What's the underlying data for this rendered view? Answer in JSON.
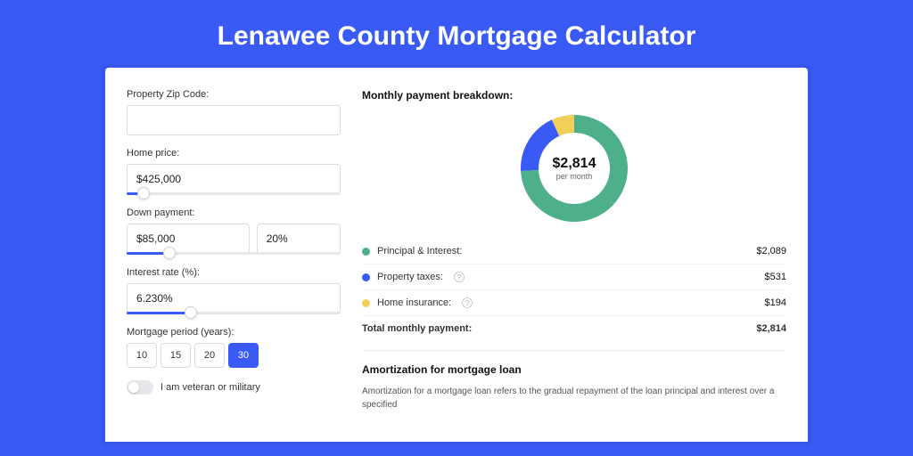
{
  "page": {
    "title": "Lenawee County Mortgage Calculator",
    "background_color": "#3a5af6",
    "card_background": "#ffffff"
  },
  "form": {
    "zip": {
      "label": "Property Zip Code:",
      "value": ""
    },
    "home_price": {
      "label": "Home price:",
      "value": "$425,000",
      "slider_pct": 8
    },
    "down_payment": {
      "label": "Down payment:",
      "amount": "$85,000",
      "percent": "20%",
      "slider_pct": 20
    },
    "interest_rate": {
      "label": "Interest rate (%):",
      "value": "6.230%",
      "slider_pct": 30
    },
    "period": {
      "label": "Mortgage period (years):",
      "options": [
        "10",
        "15",
        "20",
        "30"
      ],
      "selected": "30"
    },
    "veteran": {
      "label": "I am veteran or military",
      "checked": false
    }
  },
  "breakdown": {
    "title": "Monthly payment breakdown:",
    "center_amount": "$2,814",
    "center_sub": "per month",
    "donut": {
      "size": 130,
      "thickness": 20,
      "slices": [
        {
          "label": "Principal & Interest:",
          "value": "$2,089",
          "color": "#4db08a",
          "pct": 74.2,
          "has_help": false
        },
        {
          "label": "Property taxes:",
          "value": "$531",
          "color": "#3a5af6",
          "pct": 18.9,
          "has_help": true
        },
        {
          "label": "Home insurance:",
          "value": "$194",
          "color": "#f2cf5b",
          "pct": 6.9,
          "has_help": true
        }
      ]
    },
    "total": {
      "label": "Total monthly payment:",
      "value": "$2,814"
    }
  },
  "amortization": {
    "title": "Amortization for mortgage loan",
    "text": "Amortization for a mortgage loan refers to the gradual repayment of the loan principal and interest over a specified"
  }
}
